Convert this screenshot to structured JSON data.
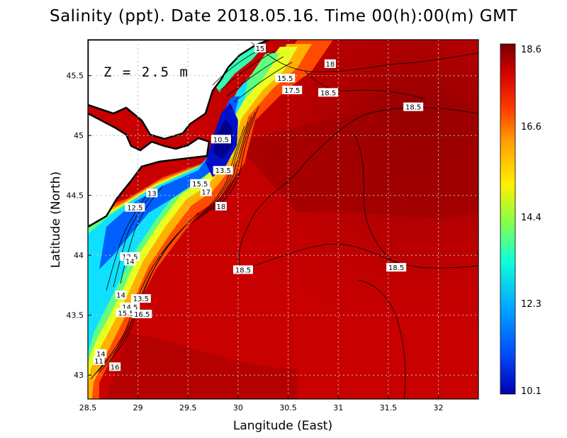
{
  "title": "Salinity (ppt). Date 2018.05.16. Time 00(h):00(m) GMT",
  "depth_label": "Z = 2.5 m",
  "x_axis": {
    "title": "Langitude (East)",
    "ticks": [
      28.5,
      29,
      29.5,
      30,
      30.5,
      31,
      31.5,
      32
    ],
    "tick_labels": [
      "28.5",
      "29",
      "29.5",
      "30",
      "30.5",
      "31",
      "31.5",
      "32"
    ],
    "range": [
      28.5,
      32.4
    ]
  },
  "y_axis": {
    "title": "Latitude (North)",
    "ticks": [
      43,
      43.5,
      44,
      44.5,
      45,
      45.5
    ],
    "tick_labels": [
      "43",
      "43.5",
      "44",
      "44.5",
      "45",
      "45.5"
    ],
    "range": [
      42.8,
      45.8
    ]
  },
  "colorbar": {
    "labels": [
      "18.6",
      "16.6",
      "14.4",
      "12.3",
      "10.1"
    ],
    "values": [
      18.6,
      16.6,
      14.4,
      12.3,
      10.1
    ],
    "colors": [
      "#7a0000",
      "#d20000",
      "#ff3a00",
      "#ff9a00",
      "#ffe600",
      "#b4ff3a",
      "#40ffb0",
      "#00d8ff",
      "#0070ff",
      "#0000b0"
    ]
  },
  "contour_labels": [
    {
      "text": "15",
      "lon": 30.22,
      "lat": 45.73
    },
    {
      "text": "18",
      "lon": 30.92,
      "lat": 45.6
    },
    {
      "text": "15.5",
      "lon": 30.47,
      "lat": 45.48
    },
    {
      "text": "17.5",
      "lon": 30.54,
      "lat": 45.38
    },
    {
      "text": "18.5",
      "lon": 30.9,
      "lat": 45.36
    },
    {
      "text": "18.5",
      "lon": 31.75,
      "lat": 45.24
    },
    {
      "text": "10.5",
      "lon": 29.83,
      "lat": 44.97
    },
    {
      "text": "13.5",
      "lon": 29.85,
      "lat": 44.71
    },
    {
      "text": "15.5",
      "lon": 29.62,
      "lat": 44.6
    },
    {
      "text": "17",
      "lon": 29.68,
      "lat": 44.53
    },
    {
      "text": "18",
      "lon": 29.83,
      "lat": 44.41
    },
    {
      "text": "13",
      "lon": 29.14,
      "lat": 44.52
    },
    {
      "text": "12.5",
      "lon": 28.97,
      "lat": 44.4
    },
    {
      "text": "12.5",
      "lon": 28.92,
      "lat": 43.99
    },
    {
      "text": "14",
      "lon": 28.92,
      "lat": 43.95
    },
    {
      "text": "18.5",
      "lon": 30.05,
      "lat": 43.88
    },
    {
      "text": "18.5",
      "lon": 31.58,
      "lat": 43.9
    },
    {
      "text": "14",
      "lon": 28.83,
      "lat": 43.67
    },
    {
      "text": "13.5",
      "lon": 29.03,
      "lat": 43.64
    },
    {
      "text": "14.5",
      "lon": 28.92,
      "lat": 43.57
    },
    {
      "text": "15.5",
      "lon": 28.88,
      "lat": 43.52
    },
    {
      "text": "16.5",
      "lon": 29.04,
      "lat": 43.51
    },
    {
      "text": "14",
      "lon": 28.63,
      "lat": 43.18
    },
    {
      "text": "11",
      "lon": 28.61,
      "lat": 43.12
    },
    {
      "text": "16",
      "lon": 28.77,
      "lat": 43.07
    }
  ]
}
